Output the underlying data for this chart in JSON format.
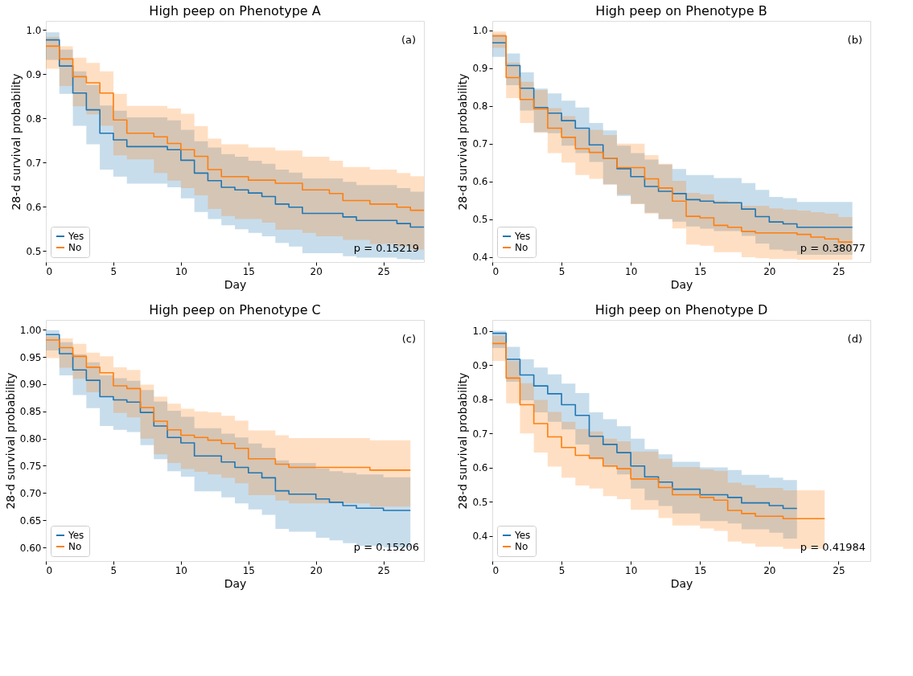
{
  "chart_data": [
    {
      "type": "step",
      "title": "High peep on Phenotype A",
      "xlabel": "Day",
      "ylabel": "28-d survival probability",
      "annotations": [
        "(a)",
        "p = 0.15219"
      ],
      "legend": "bottom left",
      "xlim": [
        0,
        28
      ],
      "xticks": [
        0,
        5,
        10,
        15,
        20,
        25
      ],
      "ylim": [
        0.475,
        1.02
      ],
      "yticks": [
        0.5,
        0.6,
        0.7,
        0.8,
        0.9,
        {
          "value": 1,
          "label": "1.0"
        }
      ],
      "x": [
        0,
        1,
        2,
        3,
        4,
        5,
        6,
        7,
        8,
        9,
        10,
        11,
        12,
        13,
        14,
        15,
        16,
        17,
        18,
        19,
        20,
        21,
        22,
        23,
        24,
        25,
        26,
        27,
        28
      ],
      "series": [
        {
          "name": "Yes",
          "color": "#1f77b4",
          "values": [
            0.977,
            0.918,
            0.857,
            0.819,
            0.766,
            0.751,
            0.736,
            0.736,
            0.736,
            0.729,
            0.705,
            0.676,
            0.659,
            0.644,
            0.638,
            0.631,
            0.623,
            0.606,
            0.599,
            0.585,
            0.585,
            0.585,
            0.577,
            0.569,
            0.569,
            0.569,
            0.562,
            0.554,
            0.554
          ],
          "lower": [
            0.932,
            0.855,
            0.783,
            0.741,
            0.684,
            0.668,
            0.652,
            0.652,
            0.652,
            0.644,
            0.619,
            0.588,
            0.572,
            0.558,
            0.549,
            0.541,
            0.533,
            0.518,
            0.51,
            0.495,
            0.495,
            0.495,
            0.488,
            0.485,
            0.485,
            0.485,
            0.482,
            0.48,
            0.48
          ],
          "upper": [
            0.994,
            0.955,
            0.906,
            0.875,
            0.829,
            0.817,
            0.802,
            0.802,
            0.802,
            0.795,
            0.774,
            0.748,
            0.734,
            0.719,
            0.713,
            0.704,
            0.697,
            0.684,
            0.677,
            0.664,
            0.664,
            0.664,
            0.656,
            0.649,
            0.649,
            0.649,
            0.642,
            0.634,
            0.634
          ]
        },
        {
          "name": "No",
          "color": "#ff7f0e",
          "values": [
            0.963,
            0.934,
            0.894,
            0.88,
            0.857,
            0.796,
            0.766,
            0.766,
            0.758,
            0.743,
            0.729,
            0.714,
            0.684,
            0.668,
            0.668,
            0.66,
            0.66,
            0.653,
            0.653,
            0.638,
            0.638,
            0.63,
            0.614,
            0.614,
            0.606,
            0.606,
            0.599,
            0.592,
            0.592
          ],
          "lower": [
            0.912,
            0.873,
            0.827,
            0.809,
            0.783,
            0.716,
            0.707,
            0.707,
            0.676,
            0.659,
            0.642,
            0.626,
            0.595,
            0.579,
            0.572,
            0.572,
            0.564,
            0.548,
            0.548,
            0.541,
            0.533,
            0.533,
            0.525,
            0.525,
            0.516,
            0.516,
            0.51,
            0.503,
            0.503
          ],
          "upper": [
            0.984,
            0.963,
            0.937,
            0.925,
            0.906,
            0.855,
            0.828,
            0.828,
            0.828,
            0.822,
            0.81,
            0.782,
            0.754,
            0.741,
            0.741,
            0.734,
            0.734,
            0.727,
            0.727,
            0.713,
            0.713,
            0.704,
            0.69,
            0.69,
            0.684,
            0.684,
            0.676,
            0.669,
            0.669
          ]
        }
      ]
    },
    {
      "type": "step",
      "title": "High peep on Phenotype B",
      "xlabel": "Day",
      "ylabel": "28-d survival probability",
      "annotations": [
        "(b)",
        "p = 0.38077"
      ],
      "legend": "bottom left",
      "xlim": [
        0,
        27.3
      ],
      "xticks": [
        0,
        5,
        10,
        15,
        20,
        25
      ],
      "ylim": [
        0.387,
        1.025
      ],
      "yticks": [
        0.4,
        0.5,
        0.6,
        0.7,
        0.8,
        0.9,
        {
          "value": 1,
          "label": "1.0"
        }
      ],
      "x": [
        0,
        1,
        2,
        3,
        4,
        5,
        6,
        7,
        8,
        9,
        10,
        11,
        12,
        13,
        14,
        15,
        16,
        17,
        18,
        19,
        20,
        21,
        22,
        23,
        24,
        25,
        26
      ],
      "series": [
        {
          "name": "Yes",
          "color": "#1f77b4",
          "values": [
            0.967,
            0.907,
            0.847,
            0.796,
            0.781,
            0.761,
            0.741,
            0.697,
            0.662,
            0.634,
            0.613,
            0.587,
            0.574,
            0.568,
            0.552,
            0.548,
            0.544,
            0.544,
            0.527,
            0.507,
            0.493,
            0.488,
            0.479,
            0.479,
            0.479,
            0.479,
            0.479
          ],
          "lower": [
            0.93,
            0.855,
            0.788,
            0.731,
            0.728,
            0.695,
            0.675,
            0.652,
            0.592,
            0.562,
            0.541,
            0.517,
            0.501,
            0.494,
            0.481,
            0.475,
            0.469,
            0.469,
            0.456,
            0.436,
            0.42,
            0.416,
            0.406,
            0.406,
            0.406,
            0.406,
            0.406
          ],
          "upper": [
            0.99,
            0.939,
            0.889,
            0.846,
            0.833,
            0.814,
            0.796,
            0.755,
            0.735,
            0.695,
            0.675,
            0.658,
            0.645,
            0.633,
            0.617,
            0.617,
            0.609,
            0.609,
            0.596,
            0.578,
            0.559,
            0.556,
            0.546,
            0.546,
            0.546,
            0.546,
            0.546
          ]
        },
        {
          "name": "No",
          "color": "#ff7f0e",
          "values": [
            0.985,
            0.875,
            0.817,
            0.792,
            0.741,
            0.717,
            0.687,
            0.677,
            0.662,
            0.637,
            0.637,
            0.607,
            0.583,
            0.548,
            0.508,
            0.504,
            0.484,
            0.479,
            0.468,
            0.464,
            0.464,
            0.464,
            0.46,
            0.453,
            0.448,
            0.44,
            0.44
          ],
          "lower": [
            0.954,
            0.821,
            0.755,
            0.729,
            0.675,
            0.65,
            0.617,
            0.607,
            0.592,
            0.565,
            0.54,
            0.515,
            0.5,
            0.476,
            0.433,
            0.43,
            0.413,
            0.413,
            0.4,
            0.397,
            0.395,
            0.395,
            0.393,
            0.393,
            0.393,
            0.393,
            0.393
          ],
          "upper": [
            0.997,
            0.915,
            0.864,
            0.842,
            0.794,
            0.773,
            0.738,
            0.737,
            0.723,
            0.7,
            0.7,
            0.67,
            0.647,
            0.602,
            0.57,
            0.566,
            0.549,
            0.546,
            0.536,
            0.536,
            0.529,
            0.526,
            0.523,
            0.519,
            0.515,
            0.506,
            0.506
          ]
        }
      ]
    },
    {
      "type": "step",
      "title": "High peep on Phenotype C",
      "xlabel": "Day",
      "ylabel": "28-d survival probability",
      "annotations": [
        "(c)",
        "p = 0.15206"
      ],
      "legend": "bottom left",
      "xlim": [
        0,
        28
      ],
      "xticks": [
        0,
        5,
        10,
        15,
        20,
        25
      ],
      "ylim": [
        0.575,
        1.018
      ],
      "yticks": [
        {
          "value": 0.6,
          "label": "0.60"
        },
        0.65,
        {
          "value": 0.7,
          "label": "0.70"
        },
        0.75,
        {
          "value": 0.8,
          "label": "0.80"
        },
        0.85,
        {
          "value": 0.9,
          "label": "0.90"
        },
        0.95,
        {
          "value": 1,
          "label": "1.00"
        }
      ],
      "x": [
        0,
        1,
        2,
        3,
        4,
        5,
        6,
        7,
        8,
        9,
        10,
        11,
        12,
        13,
        14,
        15,
        16,
        17,
        18,
        19,
        20,
        21,
        22,
        23,
        24,
        25,
        26,
        27
      ],
      "series": [
        {
          "name": "Yes",
          "color": "#1f77b4",
          "values": [
            0.991,
            0.956,
            0.926,
            0.907,
            0.877,
            0.871,
            0.867,
            0.848,
            0.823,
            0.802,
            0.792,
            0.768,
            0.768,
            0.757,
            0.747,
            0.737,
            0.728,
            0.704,
            0.698,
            0.698,
            0.689,
            0.683,
            0.677,
            0.672,
            0.672,
            0.668,
            0.668,
            0.668
          ],
          "lower": [
            0.962,
            0.916,
            0.88,
            0.856,
            0.823,
            0.816,
            0.812,
            0.788,
            0.762,
            0.74,
            0.73,
            0.703,
            0.703,
            0.692,
            0.681,
            0.67,
            0.66,
            0.634,
            0.629,
            0.629,
            0.618,
            0.613,
            0.608,
            0.603,
            0.603,
            0.6,
            0.6,
            0.6
          ],
          "upper": [
            0.999,
            0.977,
            0.955,
            0.94,
            0.916,
            0.911,
            0.906,
            0.889,
            0.868,
            0.851,
            0.84,
            0.819,
            0.819,
            0.809,
            0.802,
            0.791,
            0.783,
            0.76,
            0.755,
            0.755,
            0.745,
            0.74,
            0.737,
            0.734,
            0.734,
            0.729,
            0.729,
            0.729
          ]
        },
        {
          "name": "No",
          "color": "#ff7f0e",
          "values": [
            0.981,
            0.967,
            0.951,
            0.931,
            0.921,
            0.897,
            0.892,
            0.857,
            0.832,
            0.816,
            0.806,
            0.802,
            0.797,
            0.791,
            0.782,
            0.763,
            0.763,
            0.753,
            0.747,
            0.747,
            0.747,
            0.747,
            0.747,
            0.747,
            0.742,
            0.742,
            0.742,
            0.742
          ],
          "lower": [
            0.948,
            0.93,
            0.91,
            0.885,
            0.877,
            0.847,
            0.839,
            0.8,
            0.771,
            0.755,
            0.744,
            0.739,
            0.734,
            0.728,
            0.718,
            0.696,
            0.696,
            0.686,
            0.681,
            0.681,
            0.681,
            0.681,
            0.681,
            0.681,
            0.675,
            0.675,
            0.675,
            0.675
          ],
          "upper": [
            0.989,
            0.984,
            0.974,
            0.958,
            0.951,
            0.931,
            0.926,
            0.899,
            0.877,
            0.864,
            0.855,
            0.85,
            0.848,
            0.842,
            0.833,
            0.815,
            0.815,
            0.806,
            0.801,
            0.801,
            0.801,
            0.801,
            0.801,
            0.801,
            0.797,
            0.797,
            0.797,
            0.797
          ]
        }
      ]
    },
    {
      "type": "step",
      "title": "High peep on Phenotype D",
      "xlabel": "Day",
      "ylabel": "28-d survival probability",
      "annotations": [
        "(d)",
        "p = 0.41984"
      ],
      "legend": "bottom left",
      "xlim": [
        0,
        27.3
      ],
      "xticks": [
        0,
        5,
        10,
        15,
        20,
        25
      ],
      "ylim": [
        0.327,
        1.032
      ],
      "yticks": [
        0.4,
        0.5,
        0.6,
        0.7,
        0.8,
        0.9,
        {
          "value": 1,
          "label": "1.0"
        }
      ],
      "series": [
        {
          "name": "Yes",
          "color": "#1f77b4",
          "x": [
            0,
            1,
            2,
            3,
            4,
            5,
            6,
            7,
            8,
            9,
            10,
            11,
            12,
            13,
            14,
            15,
            16,
            17,
            18,
            19,
            20,
            21,
            22
          ],
          "values": [
            0.993,
            0.917,
            0.871,
            0.839,
            0.816,
            0.784,
            0.753,
            0.692,
            0.668,
            0.644,
            0.605,
            0.573,
            0.558,
            0.537,
            0.537,
            0.521,
            0.521,
            0.513,
            0.497,
            0.497,
            0.489,
            0.481,
            0.481
          ],
          "lower": [
            0.95,
            0.851,
            0.797,
            0.762,
            0.734,
            0.712,
            0.668,
            0.624,
            0.603,
            0.58,
            0.539,
            0.505,
            0.488,
            0.466,
            0.466,
            0.444,
            0.444,
            0.437,
            0.42,
            0.42,
            0.41,
            0.393,
            0.393
          ],
          "upper": [
            1.0,
            0.953,
            0.917,
            0.893,
            0.873,
            0.846,
            0.818,
            0.762,
            0.742,
            0.721,
            0.685,
            0.654,
            0.639,
            0.617,
            0.617,
            0.601,
            0.601,
            0.593,
            0.579,
            0.579,
            0.571,
            0.564,
            0.564
          ]
        },
        {
          "name": "No",
          "color": "#ff7f0e",
          "x": [
            0,
            1,
            2,
            3,
            4,
            5,
            6,
            7,
            8,
            9,
            10,
            11,
            12,
            13,
            14,
            15,
            16,
            17,
            18,
            19,
            20,
            21,
            22,
            23,
            24
          ],
          "values": [
            0.963,
            0.862,
            0.784,
            0.729,
            0.69,
            0.659,
            0.636,
            0.628,
            0.605,
            0.597,
            0.567,
            0.567,
            0.542,
            0.521,
            0.521,
            0.513,
            0.505,
            0.475,
            0.466,
            0.458,
            0.458,
            0.451,
            0.451,
            0.451,
            0.451
          ],
          "lower": [
            0.912,
            0.788,
            0.7,
            0.644,
            0.603,
            0.571,
            0.548,
            0.539,
            0.517,
            0.508,
            0.477,
            0.477,
            0.453,
            0.431,
            0.431,
            0.422,
            0.415,
            0.384,
            0.378,
            0.369,
            0.369,
            0.363,
            0.363,
            0.363,
            0.363
          ],
          "upper": [
            0.986,
            0.912,
            0.847,
            0.798,
            0.763,
            0.734,
            0.713,
            0.706,
            0.685,
            0.677,
            0.647,
            0.647,
            0.626,
            0.602,
            0.602,
            0.595,
            0.591,
            0.556,
            0.549,
            0.541,
            0.541,
            0.534,
            0.534,
            0.534,
            0.534
          ]
        }
      ]
    }
  ]
}
